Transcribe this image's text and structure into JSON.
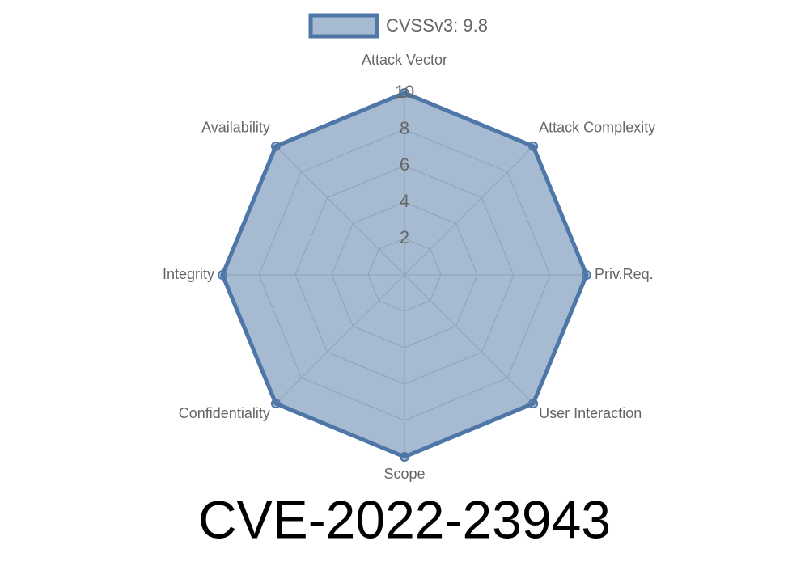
{
  "chart_data": {
    "type": "radar",
    "title": "CVE-2022-23943",
    "categories": [
      "Attack Vector",
      "Attack Complexity",
      "Priv.Req.",
      "User Interaction",
      "Scope",
      "Confidentiality",
      "Integrity",
      "Availability"
    ],
    "series": [
      {
        "name": "CVSSv3: 9.8",
        "color": "#4e76a6",
        "values": [
          10,
          10,
          10,
          10,
          10,
          10,
          10,
          10
        ]
      }
    ],
    "rlim": [
      0,
      10
    ],
    "rticks": [
      2,
      4,
      6,
      8,
      10
    ],
    "grid": true,
    "legend": "top"
  }
}
